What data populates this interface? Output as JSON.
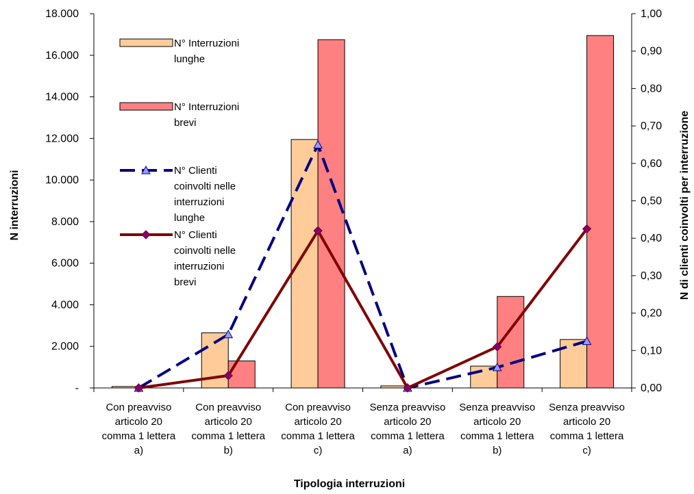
{
  "chart_data": {
    "type": "bar",
    "xlabel": "Tipologia interruzioni",
    "ylabel_left": "N  interruzioni",
    "ylabel_right": "N di clienti coinvolti per interruzione",
    "categories": [
      [
        "Con preavviso",
        "articolo 20",
        "comma 1 lettera",
        "a)"
      ],
      [
        "Con preavviso",
        "articolo 20",
        "comma 1 lettera",
        "b)"
      ],
      [
        "Con preavviso",
        "articolo 20",
        "comma 1 lettera",
        "c)"
      ],
      [
        "Senza preavviso",
        "articolo 20",
        "comma 1 lettera",
        "a)"
      ],
      [
        "Senza preavviso",
        "articolo 20",
        "comma 1 lettera",
        "b)"
      ],
      [
        "Senza preavviso",
        "articolo 20",
        "comma 1 lettera",
        "c)"
      ]
    ],
    "left_axis": {
      "ylim": [
        0,
        18000
      ],
      "ticks": [
        0,
        2000,
        4000,
        6000,
        8000,
        10000,
        12000,
        14000,
        16000,
        18000
      ],
      "tick_labels": [
        "-",
        "2.000",
        "4.000",
        "6.000",
        "8.000",
        "10.000",
        "12.000",
        "14.000",
        "16.000",
        "18.000"
      ]
    },
    "right_axis": {
      "ylim": [
        0,
        1
      ],
      "ticks": [
        0,
        0.1,
        0.2,
        0.3,
        0.4,
        0.5,
        0.6,
        0.7,
        0.8,
        0.9,
        1.0
      ],
      "tick_labels": [
        "0,00",
        "0,10",
        "0,20",
        "0,30",
        "0,40",
        "0,50",
        "0,60",
        "0,70",
        "0,80",
        "0,90",
        "1,00"
      ]
    },
    "series": [
      {
        "name": [
          "N° Interruzioni",
          "lunghe"
        ],
        "kind": "bar",
        "axis": "left",
        "color": "#FFCC99",
        "values": [
          70,
          2650,
          11950,
          100,
          1050,
          2330
        ]
      },
      {
        "name": [
          "N° Interruzioni",
          "brevi"
        ],
        "kind": "bar",
        "axis": "left",
        "color": "#FF8080",
        "values": [
          0,
          1300,
          16750,
          0,
          4400,
          16950
        ]
      },
      {
        "name": [
          "N° Clienti",
          "coinvolti nelle",
          "interruzioni",
          "lunghe"
        ],
        "kind": "line",
        "axis": "right",
        "color": "#000080",
        "marker_color": "#9999FF",
        "values": [
          0.0,
          0.143,
          0.65,
          0.0,
          0.055,
          0.125
        ]
      },
      {
        "name": [
          "N° Clienti",
          "coinvolti nelle",
          "interruzioni",
          "brevi"
        ],
        "kind": "line",
        "axis": "right",
        "color": "#800000",
        "marker_color": "#800080",
        "values": [
          0.0,
          0.033,
          0.42,
          0.0,
          0.11,
          0.425
        ]
      }
    ]
  }
}
